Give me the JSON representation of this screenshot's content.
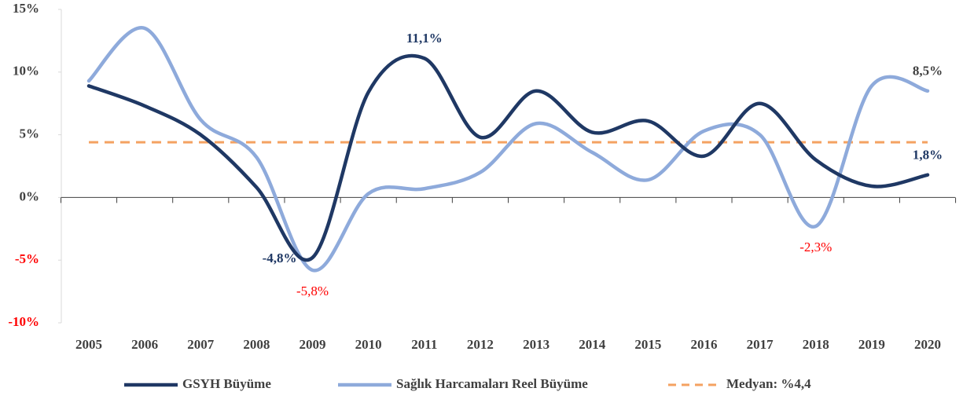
{
  "chart_data": {
    "type": "line",
    "categories": [
      "2005",
      "2006",
      "2007",
      "2008",
      "2009",
      "2010",
      "2011",
      "2012",
      "2013",
      "2014",
      "2015",
      "2016",
      "2017",
      "2018",
      "2019",
      "2020"
    ],
    "series": [
      {
        "name": "GSYH Büyüme",
        "color": "#1f3864",
        "values": [
          8.9,
          7.3,
          5.0,
          0.8,
          -4.8,
          8.4,
          11.1,
          4.8,
          8.5,
          5.2,
          6.1,
          3.3,
          7.5,
          3.0,
          0.9,
          1.8
        ],
        "value_labels": [
          null,
          null,
          null,
          null,
          "-4,8%",
          null,
          "11,1%",
          null,
          null,
          null,
          null,
          null,
          null,
          null,
          null,
          "1,8%"
        ]
      },
      {
        "name": "Sağlık Harcamaları Reel Büyüme",
        "color": "#8eaadb",
        "values": [
          9.3,
          13.5,
          6.2,
          3.2,
          -5.8,
          0.3,
          0.7,
          2.0,
          5.9,
          3.6,
          1.4,
          5.3,
          5.0,
          -2.3,
          8.9,
          8.5
        ],
        "value_labels": [
          null,
          null,
          null,
          null,
          "-5,8%",
          null,
          null,
          null,
          null,
          null,
          null,
          null,
          null,
          "-2,3%",
          null,
          "8,5%"
        ]
      }
    ],
    "median": {
      "name": "Medyan: %4,4",
      "value": 4.4,
      "color": "#f4a261"
    },
    "ylim": [
      -10,
      15
    ],
    "yticks": [
      {
        "value": -10,
        "label": "-10%"
      },
      {
        "value": -5,
        "label": "-5%"
      },
      {
        "value": 0,
        "label": "0%"
      },
      {
        "value": 5,
        "label": "5%"
      },
      {
        "value": 10,
        "label": "10%"
      },
      {
        "value": 15,
        "label": "15%"
      }
    ],
    "grid": false
  }
}
